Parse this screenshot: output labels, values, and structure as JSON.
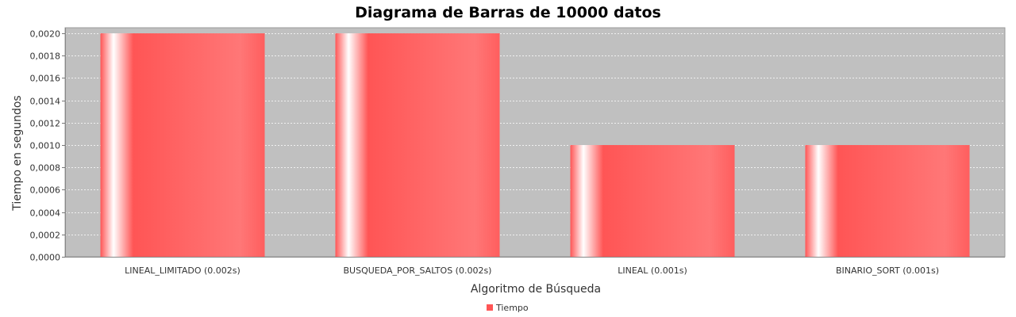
{
  "chart_data": {
    "type": "bar",
    "title": "Diagrama de Barras de 10000 datos",
    "xlabel": "Algoritmo de Búsqueda",
    "ylabel": "Tiempo en segundos",
    "categories": [
      "LINEAL_LIMITADO (0.002s)",
      "BUSQUEDA_POR_SALTOS (0.002s)",
      "LINEAL (0.001s)",
      "BINARIO_SORT (0.001s)"
    ],
    "series": [
      {
        "name": "Tiempo",
        "values": [
          0.002,
          0.002,
          0.001,
          0.001
        ],
        "color": "#ff5555"
      }
    ],
    "ylim": [
      0,
      0.00205
    ],
    "yticks": [
      "0,0000",
      "0,0002",
      "0,0004",
      "0,0006",
      "0,0008",
      "0,0010",
      "0,0012",
      "0,0014",
      "0,0016",
      "0,0018",
      "0,0020"
    ],
    "ytick_values": [
      0,
      0.0002,
      0.0004,
      0.0006,
      0.0008,
      0.001,
      0.0012,
      0.0014,
      0.0016,
      0.0018,
      0.002
    ],
    "grid": true,
    "legend": "bottom-center",
    "plot_background": "#c0c0c0"
  }
}
